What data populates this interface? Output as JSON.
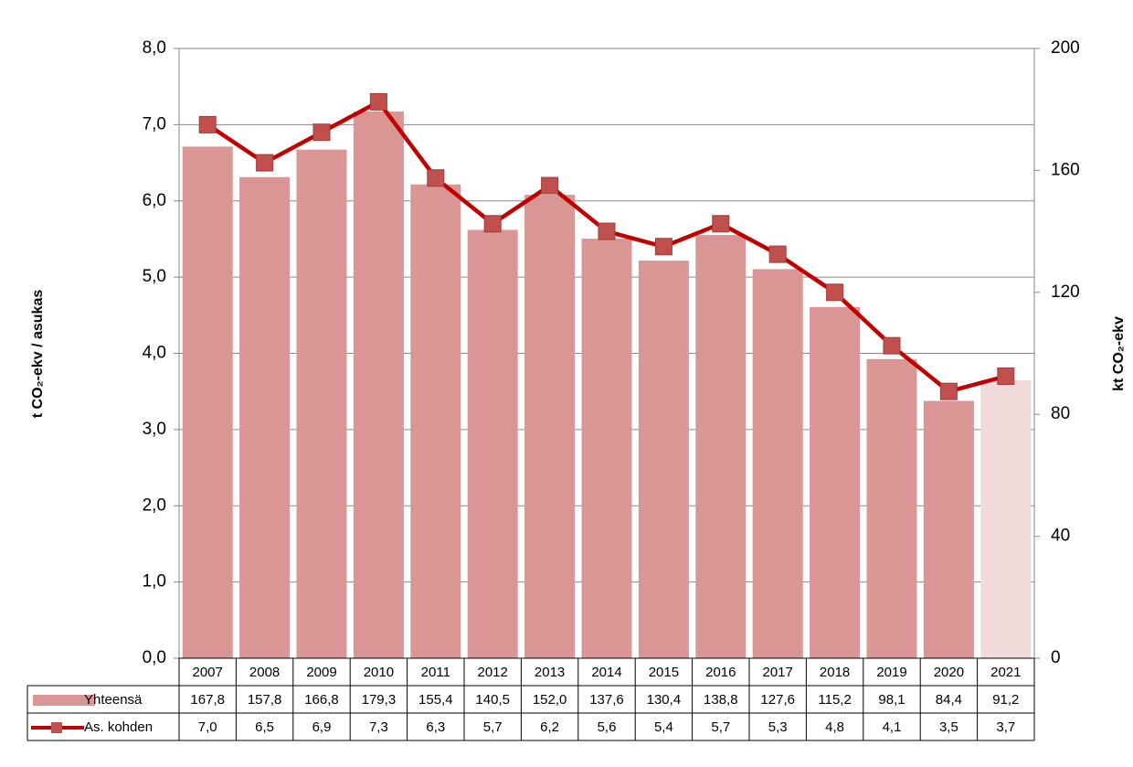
{
  "chart_data": {
    "type": "bar-line-table",
    "ylabel": "t CO₂-ekv / asukas",
    "y2label": "kt CO₂-ekv",
    "categories": [
      "2007",
      "2008",
      "2009",
      "2010",
      "2011",
      "2012",
      "2013",
      "2014",
      "2015",
      "2016",
      "2017",
      "2018",
      "2019",
      "2020",
      "2021"
    ],
    "series": [
      {
        "name": "Yhteensä",
        "type": "bar",
        "axis": "y2",
        "color": "#d99694",
        "colors": [
          "#d99694",
          "#d99694",
          "#d99694",
          "#d99694",
          "#d99694",
          "#d99694",
          "#d99694",
          "#d99694",
          "#d99694",
          "#d99694",
          "#d99694",
          "#d99694",
          "#d99694",
          "#d99694",
          "#f2dcdb"
        ],
        "values": [
          167.8,
          157.8,
          166.8,
          179.3,
          155.4,
          140.5,
          152.0,
          137.6,
          130.4,
          138.8,
          127.6,
          115.2,
          98.1,
          84.4,
          91.2
        ],
        "value_labels": [
          "167,8",
          "157,8",
          "166,8",
          "179,3",
          "155,4",
          "140,5",
          "152,0",
          "137,6",
          "130,4",
          "138,8",
          "127,6",
          "115,2",
          "98,1",
          "84,4",
          "91,2"
        ]
      },
      {
        "name": "As. kohden",
        "type": "line",
        "axis": "y",
        "color": "#c00000",
        "marker_color": "#c0504d",
        "values": [
          7.0,
          6.5,
          6.9,
          7.3,
          6.3,
          5.7,
          6.2,
          5.6,
          5.4,
          5.7,
          5.3,
          4.8,
          4.1,
          3.5,
          3.7
        ],
        "value_labels": [
          "7,0",
          "6,5",
          "6,9",
          "7,3",
          "6,3",
          "5,7",
          "6,2",
          "5,6",
          "5,4",
          "5,7",
          "5,3",
          "4,8",
          "4,1",
          "3,5",
          "3,7"
        ]
      }
    ],
    "ylim": [
      0,
      8
    ],
    "yticks": [
      {
        "value": 0,
        "label": "0,0"
      },
      {
        "value": 1,
        "label": "1,0"
      },
      {
        "value": 2,
        "label": "2,0"
      },
      {
        "value": 3,
        "label": "3,0"
      },
      {
        "value": 4,
        "label": "4,0"
      },
      {
        "value": 5,
        "label": "5,0"
      },
      {
        "value": 6,
        "label": "6,0"
      },
      {
        "value": 7,
        "label": "7,0"
      },
      {
        "value": 8,
        "label": "8,0"
      }
    ],
    "y2lim": [
      0,
      200
    ],
    "y2ticks": [
      0,
      40,
      80,
      120,
      160,
      200
    ],
    "grid": true
  }
}
